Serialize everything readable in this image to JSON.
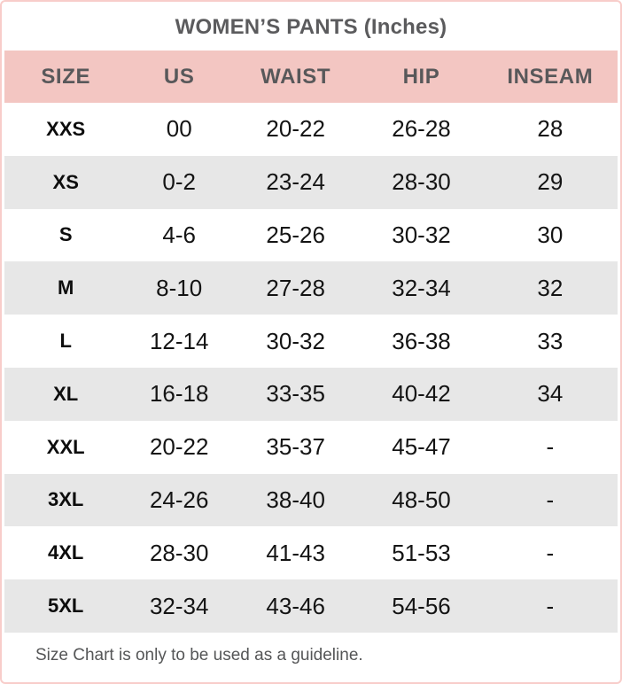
{
  "chart_data": {
    "type": "table",
    "title": "WOMEN’S PANTS (Inches)",
    "columns": [
      "SIZE",
      "US",
      "WAIST",
      "HIP",
      "INSEAM"
    ],
    "rows": [
      [
        "XXS",
        "00",
        "20-22",
        "26-28",
        "28"
      ],
      [
        "XS",
        "0-2",
        "23-24",
        "28-30",
        "29"
      ],
      [
        "S",
        "4-6",
        "25-26",
        "30-32",
        "30"
      ],
      [
        "M",
        "8-10",
        "27-28",
        "32-34",
        "32"
      ],
      [
        "L",
        "12-14",
        "30-32",
        "36-38",
        "33"
      ],
      [
        "XL",
        "16-18",
        "33-35",
        "40-42",
        "34"
      ],
      [
        "XXL",
        "20-22",
        "35-37",
        "45-47",
        "-"
      ],
      [
        "3XL",
        "24-26",
        "38-40",
        "48-50",
        "-"
      ],
      [
        "4XL",
        "28-30",
        "41-43",
        "51-53",
        "-"
      ],
      [
        "5XL",
        "32-34",
        "43-46",
        "54-56",
        "-"
      ]
    ],
    "note": "Size Chart is only to be used as a guideline.",
    "layout_hints": {
      "striped": true,
      "stripe_rows": [
        "XS",
        "M",
        "XL",
        "3XL",
        "5XL"
      ],
      "header_position": "top"
    }
  },
  "colors": {
    "border_pink": "#f8cdca",
    "header_pink": "#f3c6c2",
    "header_text": "#58585a",
    "title_text": "#5b5b5d",
    "alt_row_gray": "#e7e7e7",
    "data_text": "#141414",
    "note_text": "#555657"
  }
}
